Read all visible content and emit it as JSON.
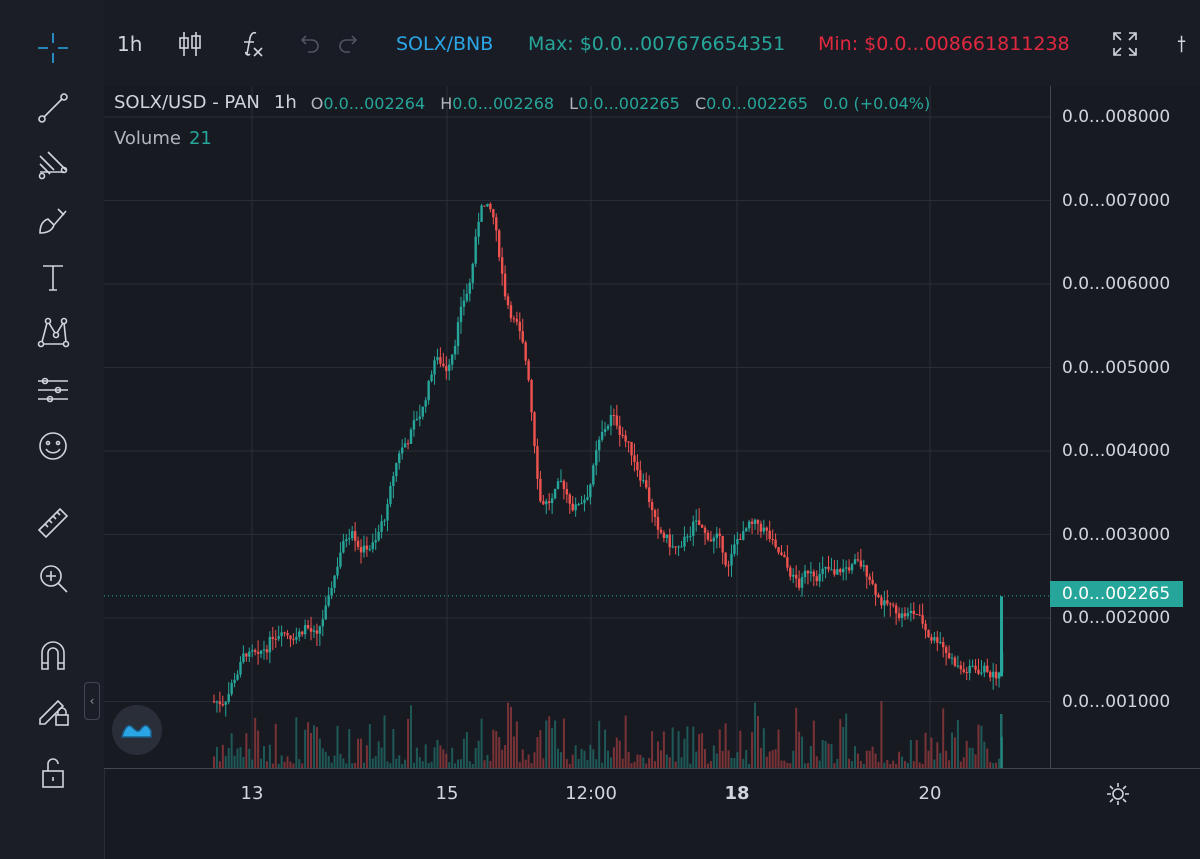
{
  "toolbar": {
    "interval": "1h",
    "pair": "SOLX/BNB",
    "max_label": "Max: $0.0...007676654351",
    "min_label": "Min: $0.0...008661811238",
    "colors": {
      "pair": "#2aa6e6",
      "max": "#26a69a",
      "min": "#e0283f"
    }
  },
  "legend": {
    "symbol": "SOLX/USD - PAN",
    "interval": "1h",
    "o_key": "O",
    "o_val": "0.0...002264",
    "h_key": "H",
    "h_val": "0.0...002268",
    "l_key": "L",
    "l_val": "0.0...002265",
    "c_key": "C",
    "c_val": "0.0...002265",
    "change": "0.0 (+0.04%)",
    "volume_label": "Volume",
    "volume_value": "21"
  },
  "price_axis": {
    "labels": [
      "0.0...008000",
      "0.0...007000",
      "0.0...006000",
      "0.0...005000",
      "0.0...004000",
      "0.0...003000",
      "0.0...002000",
      "0.0...001000"
    ],
    "current_price": "0.0...002265"
  },
  "time_axis": {
    "labels": [
      {
        "text": "13",
        "bold": false
      },
      {
        "text": "15",
        "bold": false
      },
      {
        "text": "12:00",
        "bold": false
      },
      {
        "text": "18",
        "bold": true
      },
      {
        "text": "20",
        "bold": false
      }
    ]
  },
  "icons": [
    "crosshair-icon",
    "trend-line-icon",
    "fib-icon",
    "brush-icon",
    "text-icon",
    "pattern-icon",
    "prediction-icon",
    "emoji-icon",
    "ruler-icon",
    "zoom-icon",
    "magnet-icon",
    "lock-draw-icon",
    "unlock-icon",
    "candle-type-icon",
    "indicators-icon",
    "undo-icon",
    "redo-icon",
    "fullscreen-icon",
    "camera-icon",
    "settings-icon",
    "tradingview-logo"
  ],
  "chart_data": {
    "type": "candlestick",
    "y_unit": "price level (×0.001)",
    "ylim": [
      0.2,
      8.4
    ],
    "x_ticks": [
      "13",
      "15",
      "12:00",
      "18",
      "20"
    ],
    "close_series": [
      1.0,
      1.3,
      1.6,
      1.5,
      1.7,
      1.9,
      1.8,
      1.9,
      1.75,
      2.2,
      2.8,
      3.1,
      2.8,
      2.9,
      3.3,
      4.0,
      4.2,
      4.5,
      5.1,
      5.0,
      5.5,
      6.0,
      7.0,
      6.8,
      5.9,
      5.5,
      4.9,
      3.4,
      3.4,
      3.6,
      3.3,
      3.5,
      4.1,
      4.4,
      4.2,
      3.9,
      3.6,
      3.0,
      2.9,
      2.8,
      3.1,
      3.0,
      2.95,
      2.6,
      3.0,
      3.1,
      3.05,
      2.8,
      2.6,
      2.4,
      2.6,
      2.55,
      2.5,
      2.6,
      2.65,
      2.5,
      2.2,
      2.1,
      2.05,
      2.05,
      1.8,
      1.75,
      1.5,
      1.35,
      1.4,
      1.4,
      1.3,
      2.26
    ],
    "current": 2.265
  }
}
